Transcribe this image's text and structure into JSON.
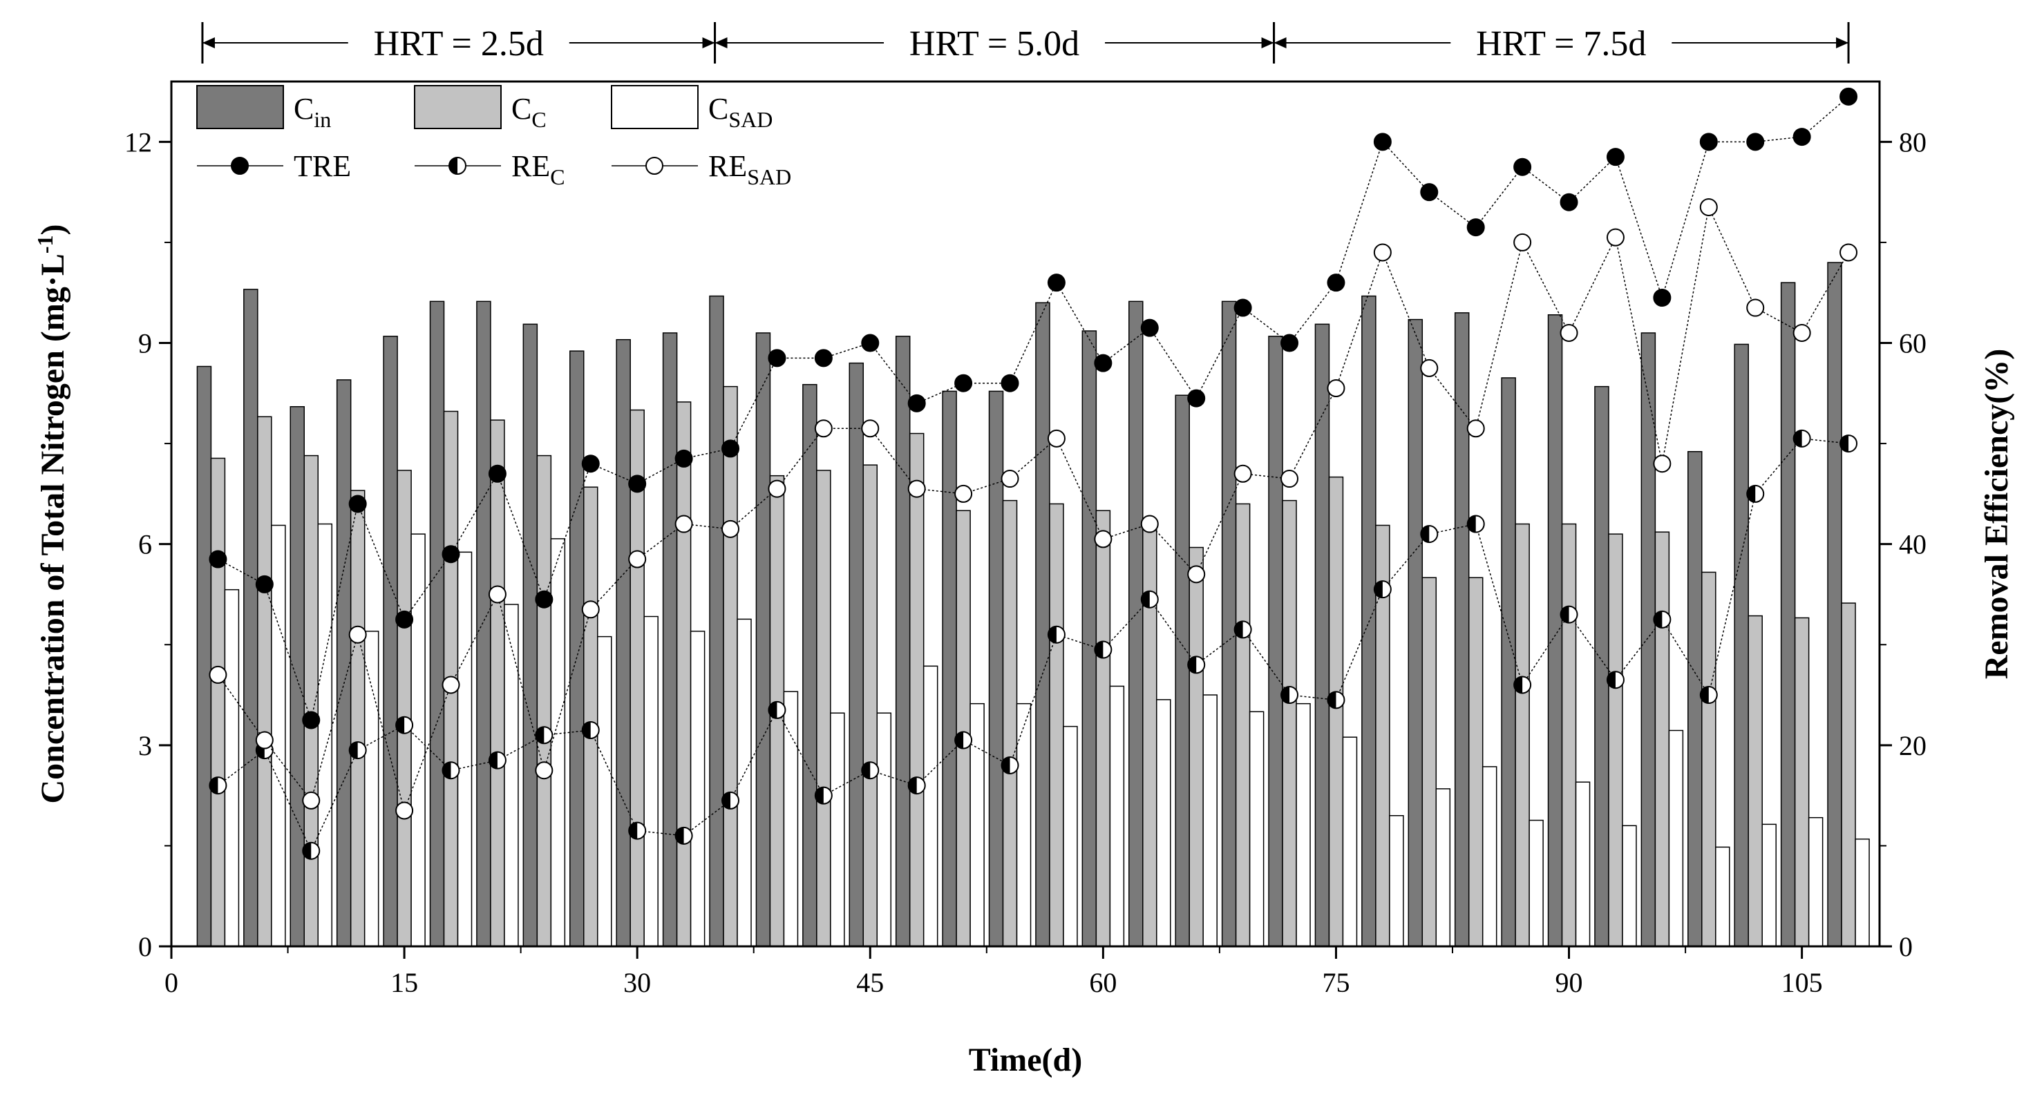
{
  "chart_data": {
    "type": "bar+line",
    "xlabel": "Time(d)",
    "ylabel": "Concentration of Total Nitrogen (mg·L",
    "ylabel_sup": "-1",
    "ylabel_close": ")",
    "y2label": "Removal Efficiency(%)",
    "xlim": [
      0,
      110
    ],
    "ylim": [
      0,
      12.9
    ],
    "y2lim": [
      0,
      86
    ],
    "x_ticks": [
      0,
      15,
      30,
      45,
      60,
      75,
      90,
      105
    ],
    "y_ticks": [
      0,
      3,
      6,
      9,
      12
    ],
    "y2_ticks": [
      0,
      20,
      40,
      60,
      80
    ],
    "hrt_periods": [
      {
        "label": "HRT = 2.5d",
        "start": 2,
        "end": 35
      },
      {
        "label": "HRT = 5.0d",
        "start": 35,
        "end": 71
      },
      {
        "label": "HRT = 7.5d",
        "start": 71,
        "end": 108
      }
    ],
    "x": [
      3,
      6,
      9,
      12,
      15,
      18,
      21,
      24,
      27,
      30,
      33,
      36,
      39,
      42,
      45,
      48,
      51,
      54,
      57,
      60,
      63,
      66,
      69,
      72,
      75,
      78,
      81,
      84,
      87,
      90,
      93,
      96,
      99,
      102,
      105,
      108
    ],
    "bar_series": [
      {
        "name": "C",
        "sub": "in",
        "color": "#7a7a7a",
        "values": [
          8.65,
          9.8,
          8.05,
          8.45,
          9.1,
          9.62,
          9.62,
          9.28,
          8.88,
          9.05,
          9.15,
          9.7,
          9.15,
          8.38,
          8.7,
          9.1,
          8.28,
          8.28,
          9.6,
          9.18,
          9.62,
          8.22,
          9.62,
          9.1,
          9.28,
          9.7,
          9.35,
          9.45,
          8.48,
          9.42,
          8.35,
          9.15,
          7.38,
          8.98,
          9.9,
          10.2
        ]
      },
      {
        "name": "C",
        "sub": "C",
        "color": "#c2c2c2",
        "values": [
          7.28,
          7.9,
          7.32,
          6.8,
          7.1,
          7.98,
          7.85,
          7.32,
          6.85,
          8.0,
          8.12,
          8.35,
          7.02,
          7.1,
          7.18,
          7.65,
          6.5,
          6.65,
          6.6,
          6.5,
          6.35,
          5.95,
          6.6,
          6.65,
          7.0,
          6.28,
          5.5,
          5.5,
          6.3,
          6.3,
          6.15,
          6.18,
          5.58,
          4.93,
          4.9,
          5.12
        ]
      },
      {
        "name": "C",
        "sub": "SAD",
        "color": "#ffffff",
        "values": [
          5.32,
          6.28,
          6.3,
          4.7,
          6.15,
          5.88,
          5.1,
          6.08,
          4.62,
          4.92,
          4.7,
          4.88,
          3.8,
          3.48,
          3.48,
          4.18,
          3.62,
          3.62,
          3.28,
          3.88,
          3.68,
          3.75,
          3.5,
          3.62,
          3.12,
          1.95,
          2.35,
          2.68,
          1.88,
          2.45,
          1.8,
          3.22,
          1.48,
          1.82,
          1.92,
          1.6
        ]
      }
    ],
    "line_series": [
      {
        "name": "TRE",
        "sub": "",
        "marker": "filled",
        "values": [
          38.5,
          36.0,
          22.5,
          44.0,
          32.5,
          39.0,
          47.0,
          34.5,
          48.0,
          46.0,
          48.5,
          49.5,
          58.5,
          58.5,
          60.0,
          54.0,
          56.0,
          56.0,
          66.0,
          58.0,
          61.5,
          54.5,
          63.5,
          60.0,
          66.0,
          80.0,
          75.0,
          71.5,
          77.5,
          74.0,
          78.5,
          64.5,
          80.0,
          80.0,
          80.5,
          84.5
        ]
      },
      {
        "name": "RE",
        "sub": "C",
        "marker": "half",
        "values": [
          16.0,
          19.5,
          9.5,
          19.5,
          22.0,
          17.5,
          18.5,
          21.0,
          21.5,
          11.5,
          11.0,
          14.5,
          23.5,
          15.0,
          17.5,
          16.0,
          20.5,
          18.0,
          31.0,
          29.5,
          34.5,
          28.0,
          31.5,
          25.0,
          24.5,
          35.5,
          41.0,
          42.0,
          26.0,
          33.0,
          26.5,
          32.5,
          25.0,
          45.0,
          50.5,
          50.0
        ]
      },
      {
        "name": "RE",
        "sub": "SAD",
        "marker": "open",
        "values": [
          27.0,
          20.5,
          14.5,
          31.0,
          13.5,
          26.0,
          35.0,
          17.5,
          33.5,
          38.5,
          42.0,
          41.5,
          45.5,
          51.5,
          51.5,
          45.5,
          45.0,
          46.5,
          50.5,
          40.5,
          42.0,
          37.0,
          47.0,
          46.5,
          55.5,
          69.0,
          57.5,
          51.5,
          70.0,
          61.0,
          70.5,
          48.0,
          73.5,
          63.5,
          61.0,
          69.0
        ]
      }
    ],
    "legend_position": "top-left"
  }
}
